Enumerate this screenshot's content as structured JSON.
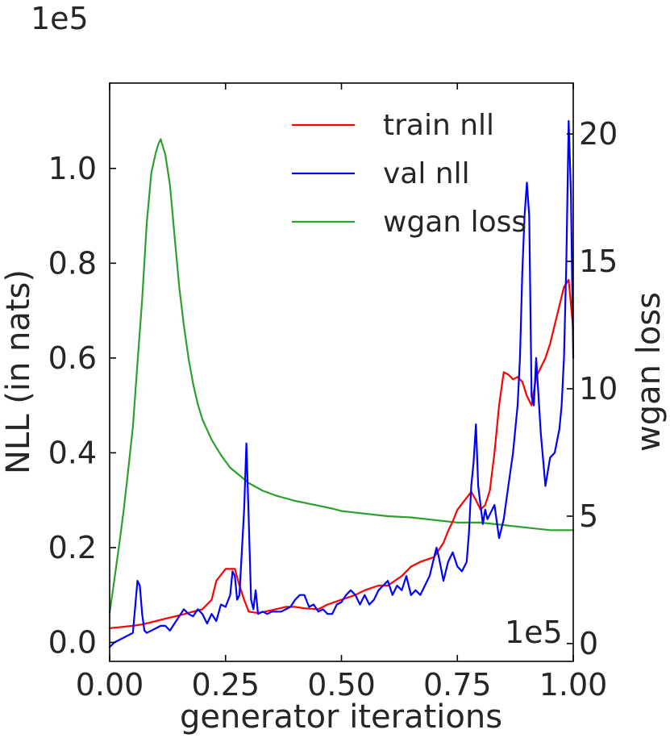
{
  "chart_data": {
    "type": "line",
    "xlabel": "generator iterations",
    "ylabel": "NLL (in nats)",
    "y2label": "wgan loss",
    "x_offset_label": "1e5",
    "y_offset_label": "1e5",
    "xlim": [
      0,
      1.0
    ],
    "ylim": [
      -0.04,
      1.18
    ],
    "y2lim": [
      -0.7,
      22.0
    ],
    "xticks": [
      "0.00",
      "0.25",
      "0.50",
      "0.75",
      "1.00"
    ],
    "xtick_values": [
      0,
      0.25,
      0.5,
      0.75,
      1.0
    ],
    "yticks": [
      "0.0",
      "0.2",
      "0.4",
      "0.6",
      "0.8",
      "1.0"
    ],
    "ytick_values": [
      0,
      0.2,
      0.4,
      0.6,
      0.8,
      1.0
    ],
    "y2ticks": [
      "0",
      "5",
      "10",
      "15",
      "20"
    ],
    "y2tick_values": [
      0,
      5,
      10,
      15,
      20
    ],
    "grid": false,
    "legend_position": "top-right",
    "series": [
      {
        "name": "train nll",
        "color": "#ff0000",
        "axis": "left",
        "x": [
          0,
          0.02,
          0.05,
          0.07,
          0.1,
          0.12,
          0.15,
          0.18,
          0.2,
          0.22,
          0.23,
          0.25,
          0.27,
          0.28,
          0.29,
          0.3,
          0.32,
          0.35,
          0.38,
          0.4,
          0.42,
          0.45,
          0.47,
          0.5,
          0.53,
          0.55,
          0.58,
          0.6,
          0.63,
          0.65,
          0.67,
          0.7,
          0.72,
          0.73,
          0.74,
          0.75,
          0.77,
          0.78,
          0.79,
          0.8,
          0.81,
          0.82,
          0.83,
          0.84,
          0.85,
          0.86,
          0.87,
          0.88,
          0.89,
          0.9,
          0.91,
          0.92,
          0.93,
          0.94,
          0.95,
          0.96,
          0.97,
          0.98,
          0.99,
          1.0
        ],
        "values": [
          0.03,
          0.032,
          0.035,
          0.038,
          0.045,
          0.05,
          0.057,
          0.065,
          0.07,
          0.09,
          0.13,
          0.155,
          0.155,
          0.12,
          0.09,
          0.065,
          0.062,
          0.068,
          0.075,
          0.075,
          0.072,
          0.07,
          0.08,
          0.09,
          0.1,
          0.11,
          0.12,
          0.12,
          0.14,
          0.16,
          0.17,
          0.18,
          0.21,
          0.235,
          0.255,
          0.28,
          0.305,
          0.318,
          0.3,
          0.28,
          0.29,
          0.32,
          0.4,
          0.5,
          0.57,
          0.565,
          0.555,
          0.56,
          0.55,
          0.52,
          0.5,
          0.56,
          0.58,
          0.6,
          0.63,
          0.67,
          0.71,
          0.75,
          0.765,
          0.66
        ]
      },
      {
        "name": "val nll",
        "color": "#0000ff",
        "axis": "left",
        "x": [
          0,
          0.01,
          0.02,
          0.03,
          0.05,
          0.06,
          0.065,
          0.07,
          0.075,
          0.08,
          0.09,
          0.1,
          0.11,
          0.12,
          0.13,
          0.14,
          0.15,
          0.16,
          0.17,
          0.18,
          0.19,
          0.2,
          0.21,
          0.22,
          0.23,
          0.24,
          0.25,
          0.26,
          0.265,
          0.27,
          0.275,
          0.28,
          0.29,
          0.295,
          0.3,
          0.305,
          0.31,
          0.315,
          0.32,
          0.33,
          0.34,
          0.35,
          0.36,
          0.37,
          0.38,
          0.39,
          0.4,
          0.41,
          0.42,
          0.43,
          0.44,
          0.45,
          0.46,
          0.47,
          0.48,
          0.49,
          0.5,
          0.51,
          0.52,
          0.53,
          0.54,
          0.55,
          0.56,
          0.57,
          0.58,
          0.59,
          0.6,
          0.61,
          0.62,
          0.63,
          0.64,
          0.65,
          0.66,
          0.67,
          0.68,
          0.69,
          0.7,
          0.705,
          0.71,
          0.72,
          0.73,
          0.74,
          0.75,
          0.76,
          0.77,
          0.775,
          0.78,
          0.785,
          0.79,
          0.795,
          0.8,
          0.805,
          0.81,
          0.815,
          0.82,
          0.83,
          0.84,
          0.85,
          0.86,
          0.87,
          0.88,
          0.885,
          0.89,
          0.895,
          0.9,
          0.905,
          0.91,
          0.915,
          0.92,
          0.93,
          0.94,
          0.95,
          0.96,
          0.97,
          0.975,
          0.98,
          0.985,
          0.99,
          0.995,
          1.0
        ],
        "values": [
          -0.01,
          0.0,
          0.005,
          0.01,
          0.02,
          0.13,
          0.12,
          0.06,
          0.025,
          0.02,
          0.025,
          0.03,
          0.035,
          0.035,
          0.025,
          0.04,
          0.055,
          0.07,
          0.06,
          0.055,
          0.07,
          0.06,
          0.04,
          0.06,
          0.045,
          0.08,
          0.075,
          0.1,
          0.15,
          0.14,
          0.09,
          0.1,
          0.28,
          0.42,
          0.26,
          0.09,
          0.07,
          0.11,
          0.06,
          0.065,
          0.06,
          0.065,
          0.065,
          0.065,
          0.07,
          0.075,
          0.09,
          0.1,
          0.1,
          0.075,
          0.08,
          0.065,
          0.07,
          0.06,
          0.06,
          0.08,
          0.085,
          0.1,
          0.11,
          0.1,
          0.08,
          0.1,
          0.08,
          0.09,
          0.11,
          0.12,
          0.13,
          0.1,
          0.12,
          0.11,
          0.14,
          0.1,
          0.11,
          0.1,
          0.12,
          0.14,
          0.18,
          0.2,
          0.18,
          0.13,
          0.17,
          0.19,
          0.16,
          0.15,
          0.17,
          0.23,
          0.33,
          0.38,
          0.46,
          0.33,
          0.29,
          0.25,
          0.28,
          0.26,
          0.27,
          0.29,
          0.22,
          0.26,
          0.33,
          0.4,
          0.5,
          0.6,
          0.78,
          0.9,
          0.97,
          0.9,
          0.52,
          0.5,
          0.6,
          0.44,
          0.33,
          0.39,
          0.4,
          0.45,
          0.5,
          0.6,
          0.8,
          1.1,
          0.95,
          0.6
        ]
      },
      {
        "name": "wgan loss",
        "color": "#2ca02c",
        "axis": "right",
        "x": [
          0,
          0.01,
          0.02,
          0.03,
          0.04,
          0.05,
          0.06,
          0.07,
          0.08,
          0.09,
          0.1,
          0.105,
          0.11,
          0.115,
          0.12,
          0.13,
          0.14,
          0.15,
          0.16,
          0.17,
          0.18,
          0.19,
          0.2,
          0.22,
          0.24,
          0.26,
          0.28,
          0.3,
          0.33,
          0.36,
          0.4,
          0.44,
          0.48,
          0.5,
          0.55,
          0.6,
          0.65,
          0.7,
          0.75,
          0.8,
          0.85,
          0.9,
          0.95,
          1.0
        ],
        "values": [
          1.2,
          2.5,
          3.8,
          5.2,
          6.8,
          8.5,
          11.0,
          13.5,
          16.5,
          18.5,
          19.3,
          19.6,
          19.8,
          19.5,
          19.2,
          18.0,
          16.0,
          14.0,
          12.5,
          11.2,
          10.2,
          9.4,
          8.8,
          8.0,
          7.4,
          6.9,
          6.6,
          6.3,
          6.0,
          5.8,
          5.6,
          5.45,
          5.3,
          5.2,
          5.1,
          5.0,
          4.95,
          4.85,
          4.75,
          4.75,
          4.65,
          4.55,
          4.45,
          4.45
        ]
      }
    ]
  }
}
